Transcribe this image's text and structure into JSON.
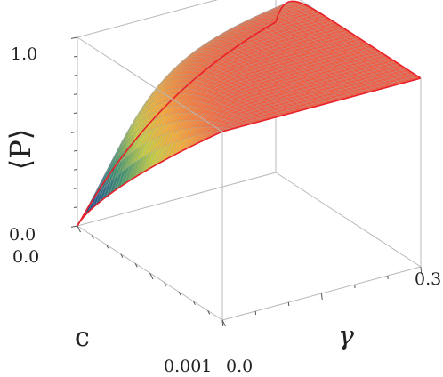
{
  "chart_data": {
    "type": "surface",
    "title": "",
    "zlabel": "⟨P⟩",
    "xlabel": "c",
    "ylabel": "γ",
    "xlim": [
      0.0,
      0.001
    ],
    "ylim": [
      0.0,
      0.3
    ],
    "zlim": [
      0.0,
      1.0
    ],
    "x_ticks": [
      "0.0",
      "0.001"
    ],
    "y_ticks": [
      "0.0",
      "0.3"
    ],
    "z_ticks": [
      "0.0",
      "1.0"
    ],
    "surface": {
      "x": [
        0.0,
        0.00025,
        0.0005,
        0.00075,
        0.001
      ],
      "y": [
        0.0,
        0.075,
        0.15,
        0.225,
        0.3
      ],
      "z": [
        [
          1.0,
          1.0,
          1.0,
          1.0,
          1.0
        ],
        [
          0.55,
          0.86,
          0.93,
          0.96,
          0.98
        ],
        [
          0.32,
          0.78,
          0.89,
          0.93,
          0.95
        ],
        [
          0.15,
          0.72,
          0.86,
          0.91,
          0.93
        ],
        [
          0.0,
          0.67,
          0.83,
          0.89,
          0.92
        ]
      ]
    },
    "colormap": "blue-green-yellow-orange-red",
    "edge_color": "#e8202a",
    "mesh_color": "#9aa3a8",
    "box_color": "#b8b8b8"
  }
}
